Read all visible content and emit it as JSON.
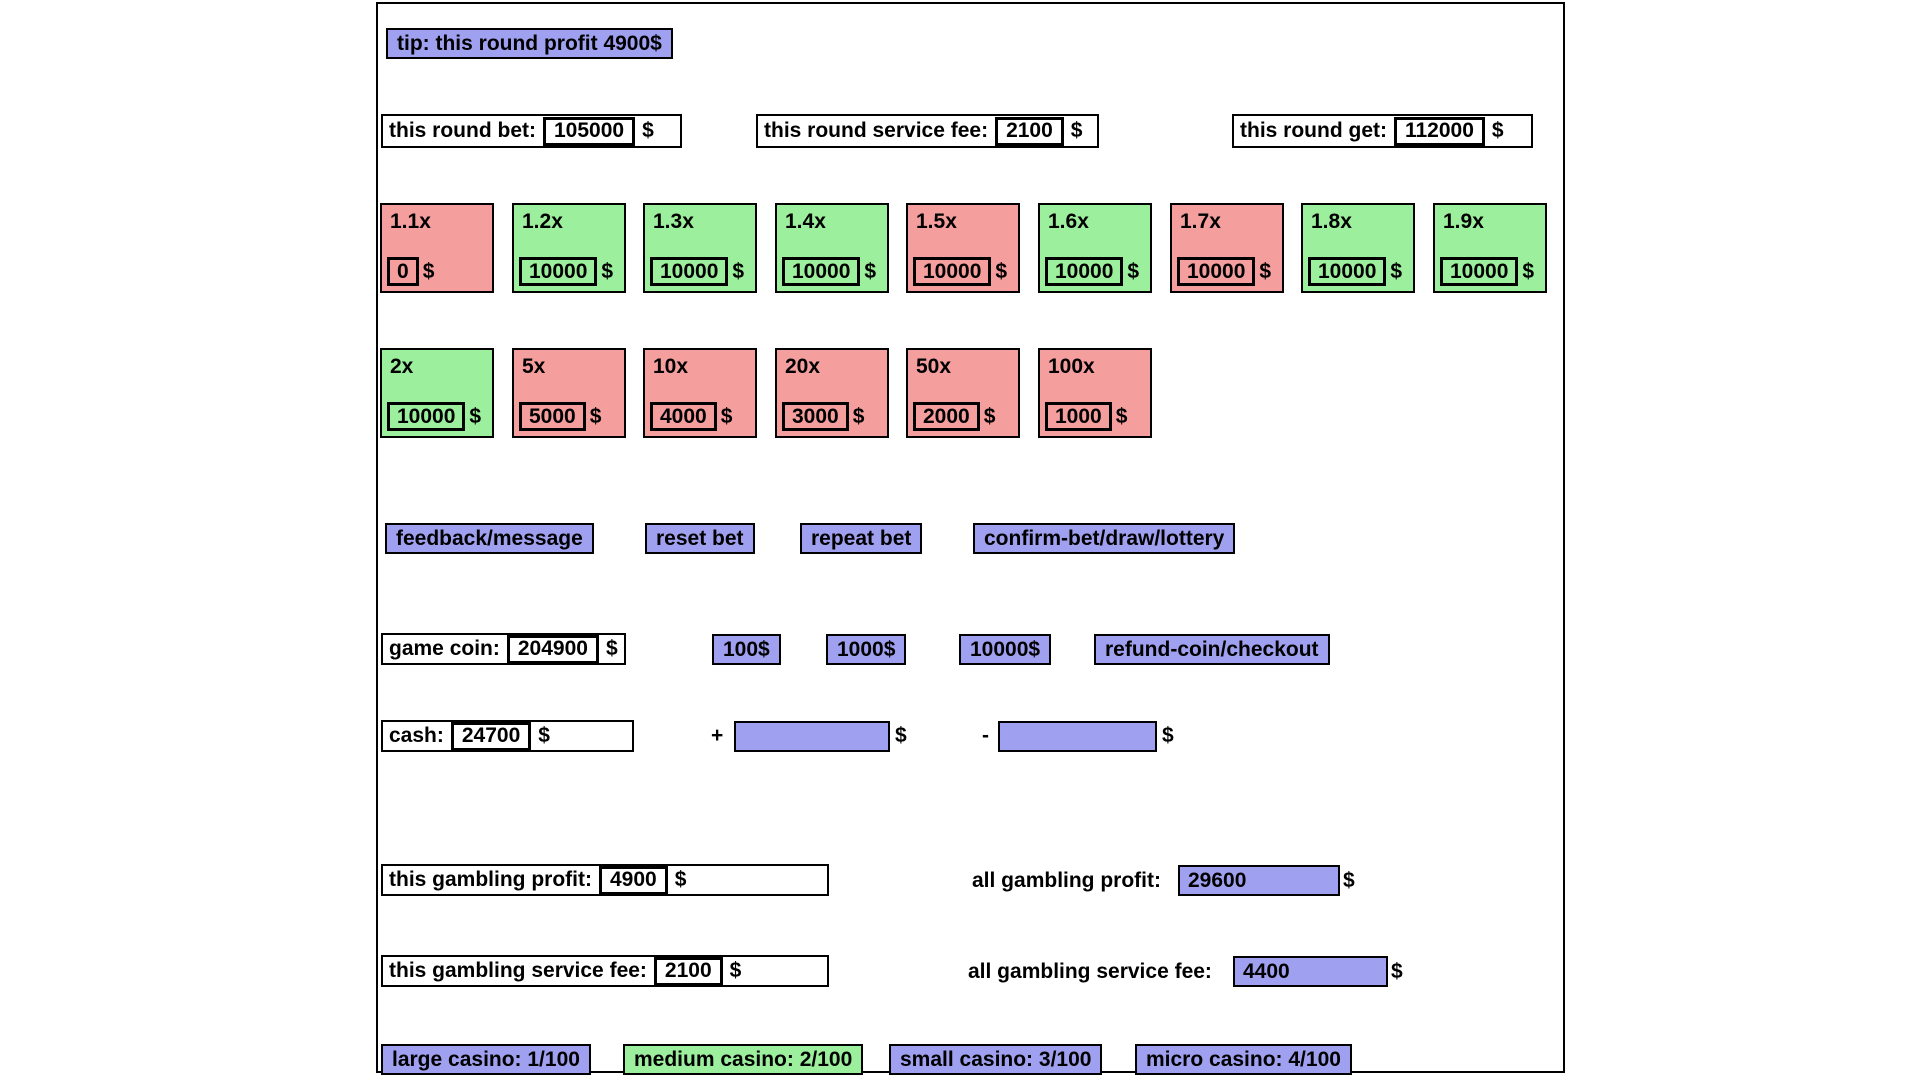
{
  "currency": "$",
  "tip": {
    "label": "tip: this round profit 4900$"
  },
  "round": {
    "bet": {
      "label": "this round bet:",
      "value": "105000"
    },
    "service_fee": {
      "label": "this round service fee:",
      "value": "2100"
    },
    "get": {
      "label": "this round get:",
      "value": "112000"
    }
  },
  "multipliers": {
    "row1": [
      {
        "label": "1.1x",
        "value": "0",
        "color": "red"
      },
      {
        "label": "1.2x",
        "value": "10000",
        "color": "green"
      },
      {
        "label": "1.3x",
        "value": "10000",
        "color": "green"
      },
      {
        "label": "1.4x",
        "value": "10000",
        "color": "green"
      },
      {
        "label": "1.5x",
        "value": "10000",
        "color": "red"
      },
      {
        "label": "1.6x",
        "value": "10000",
        "color": "green"
      },
      {
        "label": "1.7x",
        "value": "10000",
        "color": "red"
      },
      {
        "label": "1.8x",
        "value": "10000",
        "color": "green"
      },
      {
        "label": "1.9x",
        "value": "10000",
        "color": "green"
      }
    ],
    "row2": [
      {
        "label": "2x",
        "value": "10000",
        "color": "green"
      },
      {
        "label": "5x",
        "value": "5000",
        "color": "red"
      },
      {
        "label": "10x",
        "value": "4000",
        "color": "red"
      },
      {
        "label": "20x",
        "value": "3000",
        "color": "red"
      },
      {
        "label": "50x",
        "value": "2000",
        "color": "red"
      },
      {
        "label": "100x",
        "value": "1000",
        "color": "red"
      }
    ]
  },
  "actions": {
    "feedback": "feedback/message",
    "reset": "reset bet",
    "repeat": "repeat bet",
    "confirm": "confirm-bet/draw/lottery"
  },
  "coin": {
    "label": "game coin:",
    "value": "204900",
    "add100": "100$",
    "add1000": "1000$",
    "add10000": "10000$",
    "refund": "refund-coin/checkout"
  },
  "cash": {
    "label": "cash:",
    "value": "24700",
    "plus_sign": "+",
    "minus_sign": "-",
    "plus_value": "",
    "minus_value": ""
  },
  "gambling": {
    "this_profit": {
      "label": "this gambling profit:",
      "value": "4900"
    },
    "all_profit": {
      "label": "all gambling profit:",
      "value": "29600"
    },
    "this_fee": {
      "label": "this gambling service fee:",
      "value": "2100"
    },
    "all_fee": {
      "label": "all gambling service fee:",
      "value": "4400"
    }
  },
  "casinos": [
    {
      "label": "large casino: 1/100",
      "color": "purple"
    },
    {
      "label": "medium casino: 2/100",
      "color": "green"
    },
    {
      "label": "small casino: 3/100",
      "color": "purple"
    },
    {
      "label": "micro casino: 4/100",
      "color": "purple"
    }
  ],
  "colors": {
    "purple": "#A0A0F0",
    "green": "#9CEF9C",
    "red": "#F59E9E"
  }
}
